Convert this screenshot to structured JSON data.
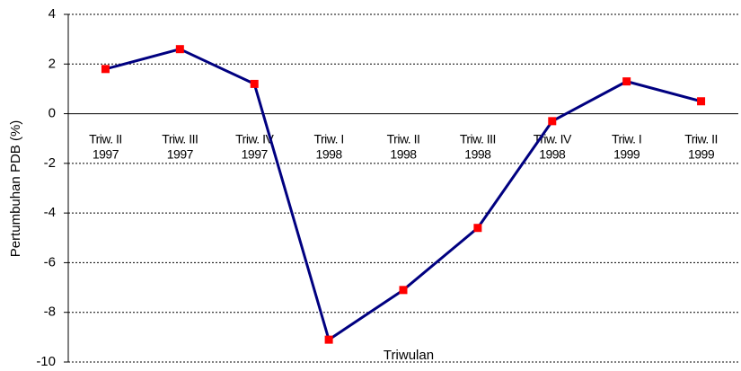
{
  "chart_data": {
    "type": "line",
    "x_label": "Triwulan",
    "y_label": "Pertumbuhan PDB (%)",
    "categories": [
      [
        "Triw. II",
        "1997"
      ],
      [
        "Triw. III",
        "1997"
      ],
      [
        "Triw. IV",
        "1997"
      ],
      [
        "Triw. I",
        "1998"
      ],
      [
        "Triw. II",
        "1998"
      ],
      [
        "Triw. III",
        "1998"
      ],
      [
        "Triw. IV",
        "1998"
      ],
      [
        "Triw. I",
        "1999"
      ],
      [
        "Triw. II",
        "1999"
      ]
    ],
    "series": [
      {
        "color": "#000080",
        "marker_color": "#ff0000",
        "values": [
          1.8,
          2.6,
          1.2,
          -9.1,
          -7.1,
          -4.6,
          -0.3,
          1.3,
          0.5
        ]
      }
    ],
    "ylim": [
      -10,
      4
    ],
    "yticks": [
      -10,
      -8,
      -6,
      -4,
      -2,
      0,
      2,
      4
    ],
    "grid": true
  }
}
